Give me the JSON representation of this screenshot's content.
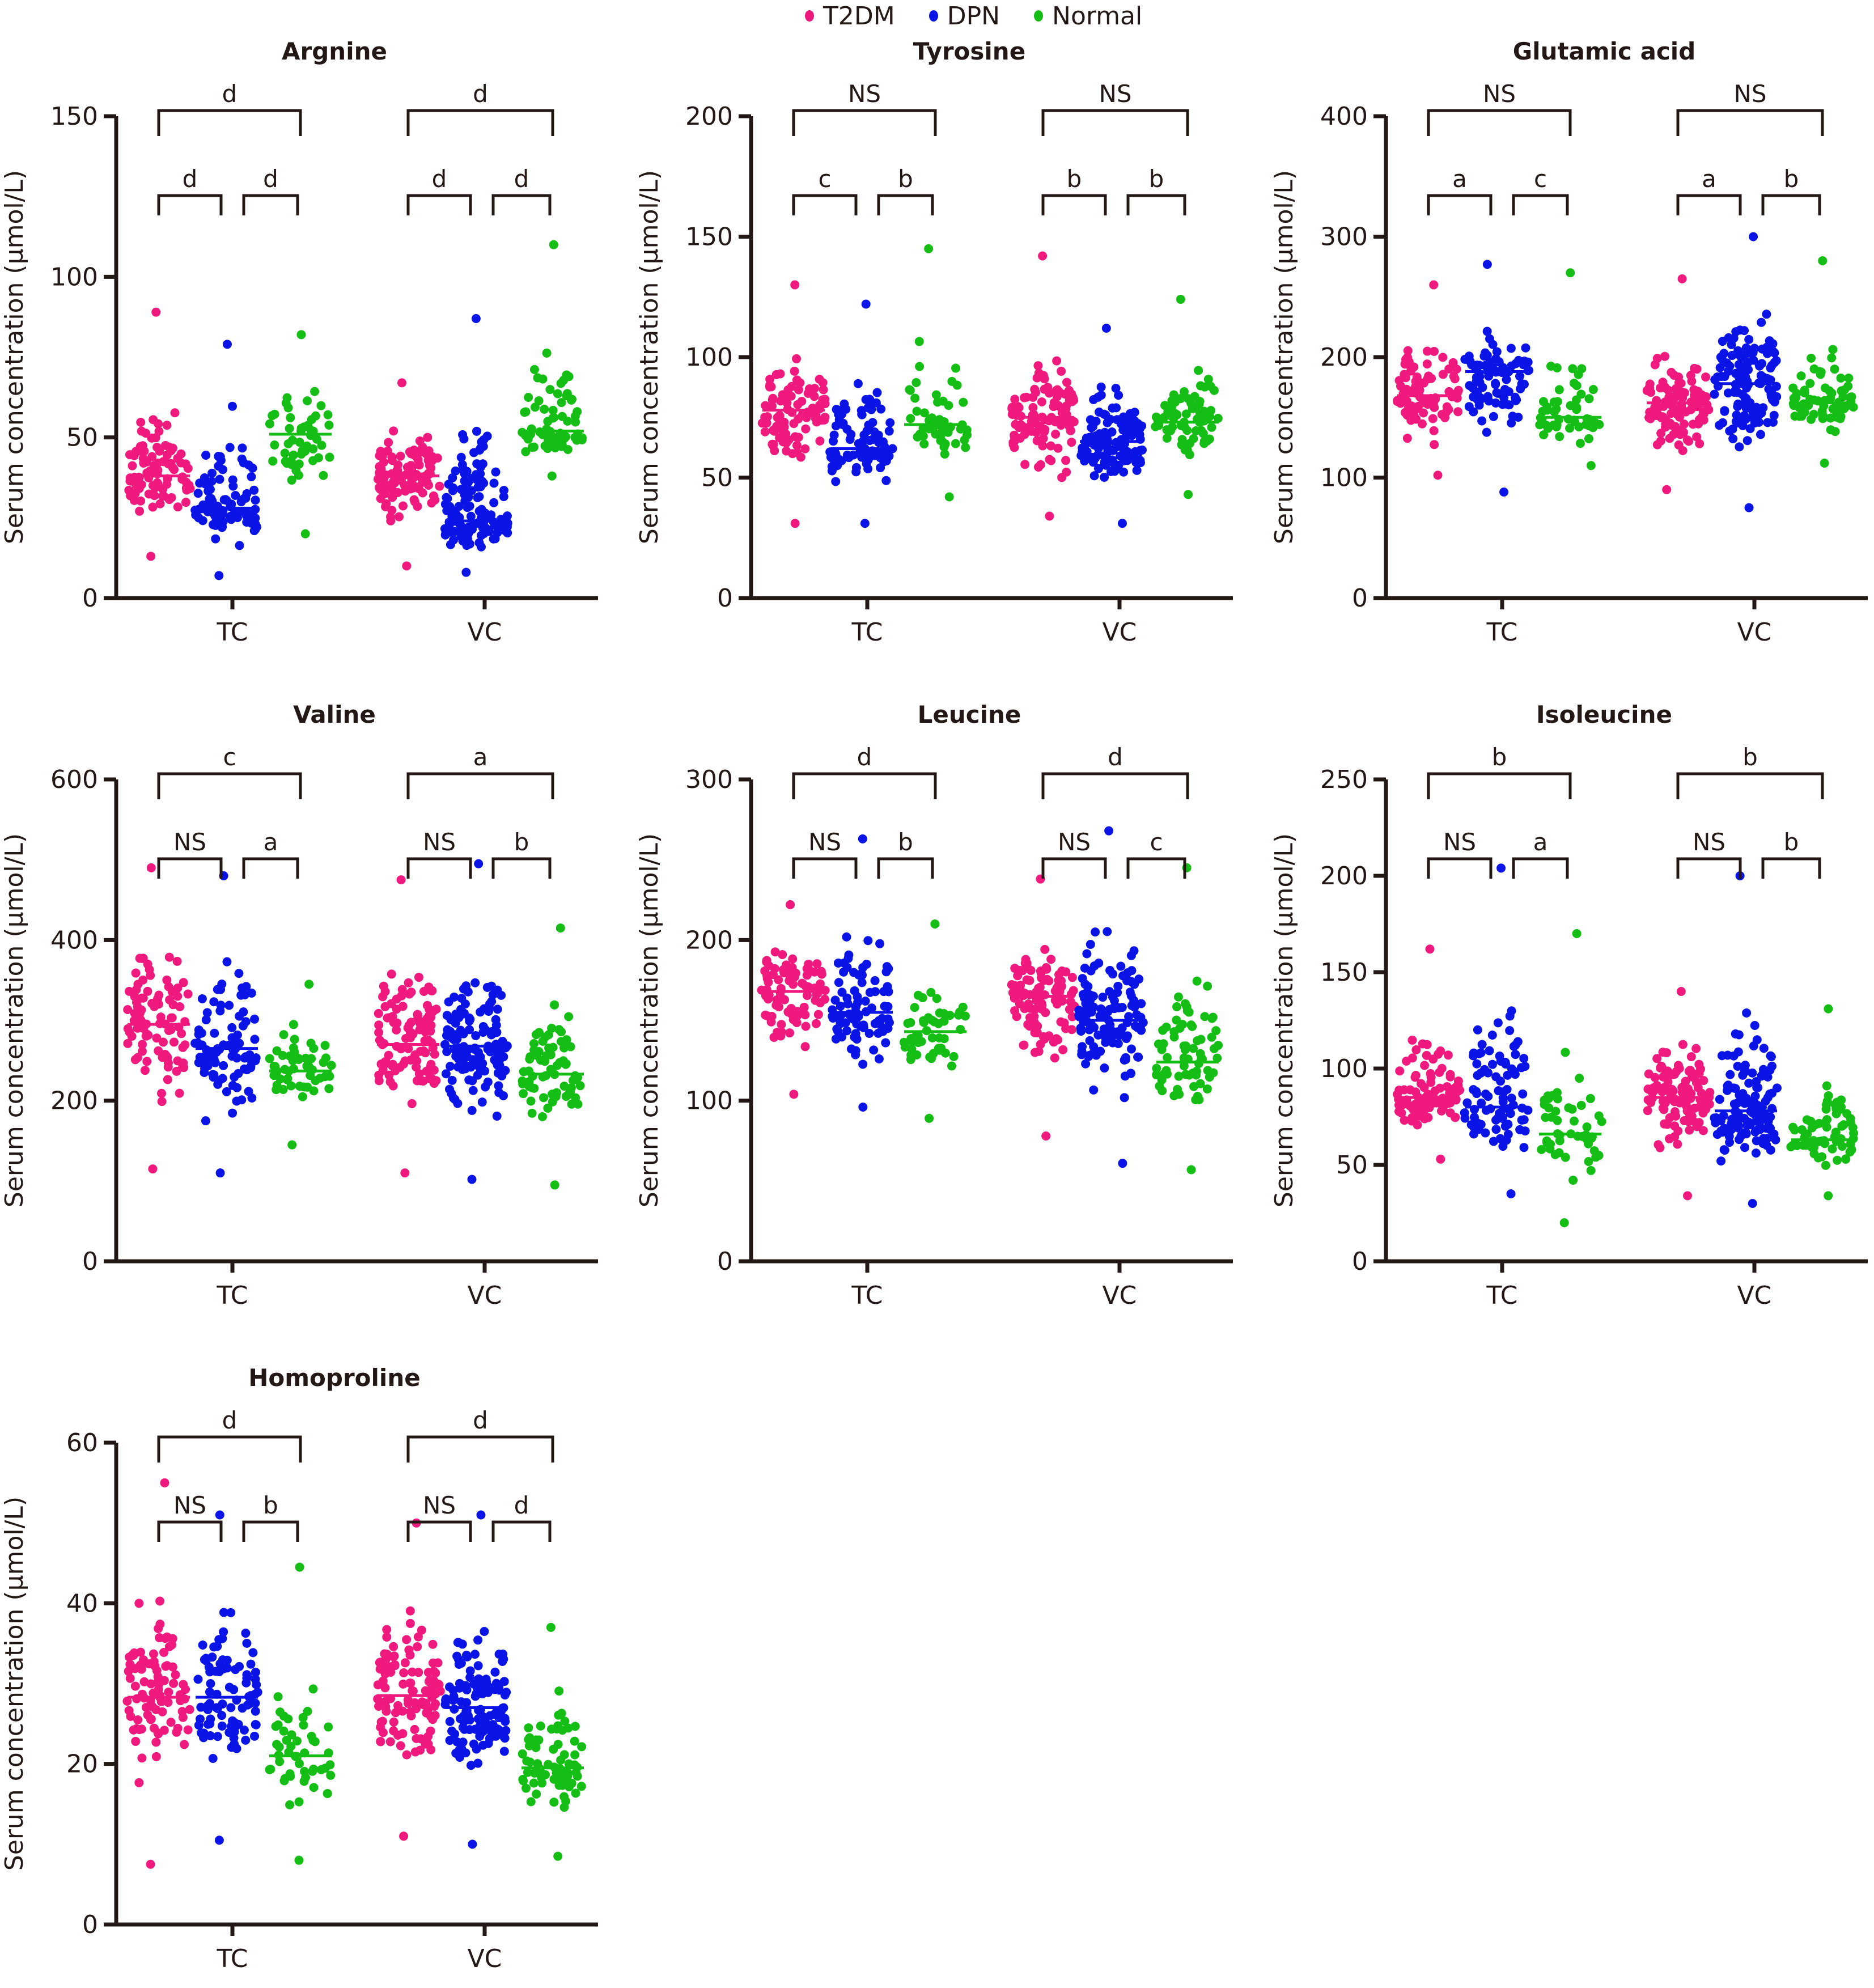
{
  "legend": {
    "items": [
      {
        "label": "T2DM",
        "color": "#f0197d"
      },
      {
        "label": "DPN",
        "color": "#0a14e6"
      },
      {
        "label": "Normal",
        "color": "#14be14"
      }
    ]
  },
  "chart_data": [
    {
      "type": "scatter",
      "title": "Argnine",
      "ylabel": "Serum concentration (μmol/L)",
      "xlabel": "",
      "categories": [
        "TC",
        "VC"
      ],
      "ylim": [
        0,
        150
      ],
      "yticks": [
        0,
        50,
        100,
        150
      ],
      "series": [
        {
          "name": "T2DM",
          "groups": {
            "TC": {
              "median": 38,
              "min": 13,
              "max": 89,
              "n": 90
            },
            "VC": {
              "median": 38,
              "min": 10,
              "max": 67,
              "n": 110
            }
          }
        },
        {
          "name": "DPN",
          "groups": {
            "TC": {
              "median": 28,
              "min": 7,
              "max": 79,
              "n": 90
            },
            "VC": {
              "median": 24,
              "min": 8,
              "max": 87,
              "n": 130
            }
          }
        },
        {
          "name": "Normal",
          "groups": {
            "TC": {
              "median": 51,
              "min": 20,
              "max": 82,
              "n": 50
            },
            "VC": {
              "median": 52,
              "min": 38,
              "max": 110,
              "n": 70
            }
          }
        }
      ],
      "significance": {
        "TC": {
          "T2DM_vs_Normal": "d",
          "T2DM_vs_DPN": "d",
          "DPN_vs_Normal": "d"
        },
        "VC": {
          "T2DM_vs_Normal": "d",
          "T2DM_vs_DPN": "d",
          "DPN_vs_Normal": "d"
        }
      }
    },
    {
      "type": "scatter",
      "title": "Tyrosine",
      "ylabel": "Serum concentration (μmol/L)",
      "xlabel": "",
      "categories": [
        "TC",
        "VC"
      ],
      "ylim": [
        0,
        200
      ],
      "yticks": [
        0,
        50,
        100,
        150,
        200
      ],
      "series": [
        {
          "name": "T2DM",
          "groups": {
            "TC": {
              "median": 78,
              "min": 31,
              "max": 130,
              "n": 90
            },
            "VC": {
              "median": 75,
              "min": 34,
              "max": 142,
              "n": 110
            }
          }
        },
        {
          "name": "DPN",
          "groups": {
            "TC": {
              "median": 62,
              "min": 31,
              "max": 122,
              "n": 90
            },
            "VC": {
              "median": 65,
              "min": 31,
              "max": 112,
              "n": 130
            }
          }
        },
        {
          "name": "Normal",
          "groups": {
            "TC": {
              "median": 72,
              "min": 42,
              "max": 145,
              "n": 50
            },
            "VC": {
              "median": 73,
              "min": 43,
              "max": 124,
              "n": 70
            }
          }
        }
      ],
      "significance": {
        "TC": {
          "T2DM_vs_Normal": "NS",
          "T2DM_vs_DPN": "c",
          "DPN_vs_Normal": "b"
        },
        "VC": {
          "T2DM_vs_Normal": "NS",
          "T2DM_vs_DPN": "b",
          "DPN_vs_Normal": "b"
        }
      }
    },
    {
      "type": "scatter",
      "title": "Glutamic acid",
      "ylabel": "Serum concentration (μmol/L)",
      "xlabel": "",
      "categories": [
        "TC",
        "VC"
      ],
      "ylim": [
        0,
        400
      ],
      "yticks": [
        0,
        100,
        200,
        300,
        400
      ],
      "series": [
        {
          "name": "T2DM",
          "groups": {
            "TC": {
              "median": 168,
              "min": 102,
              "max": 260,
              "n": 90
            },
            "VC": {
              "median": 162,
              "min": 90,
              "max": 265,
              "n": 110
            }
          }
        },
        {
          "name": "DPN",
          "groups": {
            "TC": {
              "median": 188,
              "min": 88,
              "max": 277,
              "n": 90
            },
            "VC": {
              "median": 178,
              "min": 75,
              "max": 300,
              "n": 130
            }
          }
        },
        {
          "name": "Normal",
          "groups": {
            "TC": {
              "median": 150,
              "min": 110,
              "max": 270,
              "n": 50
            },
            "VC": {
              "median": 162,
              "min": 112,
              "max": 280,
              "n": 70
            }
          }
        }
      ],
      "significance": {
        "TC": {
          "T2DM_vs_Normal": "NS",
          "T2DM_vs_DPN": "a",
          "DPN_vs_Normal": "c"
        },
        "VC": {
          "T2DM_vs_Normal": "NS",
          "T2DM_vs_DPN": "a",
          "DPN_vs_Normal": "b"
        }
      }
    },
    {
      "type": "scatter",
      "title": "Valine",
      "ylabel": "Serum concentration (μmol/L)",
      "xlabel": "",
      "categories": [
        "TC",
        "VC"
      ],
      "ylim": [
        0,
        600
      ],
      "yticks": [
        0,
        200,
        400,
        600
      ],
      "series": [
        {
          "name": "T2DM",
          "groups": {
            "TC": {
              "median": 295,
              "min": 115,
              "max": 490,
              "n": 90
            },
            "VC": {
              "median": 270,
              "min": 110,
              "max": 475,
              "n": 110
            }
          }
        },
        {
          "name": "DPN",
          "groups": {
            "TC": {
              "median": 265,
              "min": 110,
              "max": 480,
              "n": 90
            },
            "VC": {
              "median": 268,
              "min": 102,
              "max": 495,
              "n": 130
            }
          }
        },
        {
          "name": "Normal",
          "groups": {
            "TC": {
              "median": 237,
              "min": 145,
              "max": 345,
              "n": 50
            },
            "VC": {
              "median": 233,
              "min": 95,
              "max": 415,
              "n": 70
            }
          }
        }
      ],
      "significance": {
        "TC": {
          "T2DM_vs_Normal": "c",
          "T2DM_vs_DPN": "NS",
          "DPN_vs_Normal": "a"
        },
        "VC": {
          "T2DM_vs_Normal": "a",
          "T2DM_vs_DPN": "NS",
          "DPN_vs_Normal": "b"
        }
      }
    },
    {
      "type": "scatter",
      "title": "Leucine",
      "ylabel": "Serum concentration (μmol/L)",
      "xlabel": "",
      "categories": [
        "TC",
        "VC"
      ],
      "ylim": [
        0,
        300
      ],
      "yticks": [
        0,
        100,
        200,
        300
      ],
      "series": [
        {
          "name": "T2DM",
          "groups": {
            "TC": {
              "median": 168,
              "min": 104,
              "max": 222,
              "n": 90
            },
            "VC": {
              "median": 165,
              "min": 78,
              "max": 238,
              "n": 110
            }
          }
        },
        {
          "name": "DPN",
          "groups": {
            "TC": {
              "median": 155,
              "min": 96,
              "max": 263,
              "n": 90
            },
            "VC": {
              "median": 150,
              "min": 61,
              "max": 268,
              "n": 130
            }
          }
        },
        {
          "name": "Normal",
          "groups": {
            "TC": {
              "median": 143,
              "min": 89,
              "max": 210,
              "n": 50
            },
            "VC": {
              "median": 124,
              "min": 57,
              "max": 245,
              "n": 70
            }
          }
        }
      ],
      "significance": {
        "TC": {
          "T2DM_vs_Normal": "d",
          "T2DM_vs_DPN": "NS",
          "DPN_vs_Normal": "b"
        },
        "VC": {
          "T2DM_vs_Normal": "d",
          "T2DM_vs_DPN": "NS",
          "DPN_vs_Normal": "c"
        }
      }
    },
    {
      "type": "scatter",
      "title": "Isoleucine",
      "ylabel": "Serum concentration (μmol/L)",
      "xlabel": "",
      "categories": [
        "TC",
        "VC"
      ],
      "ylim": [
        0,
        250
      ],
      "yticks": [
        0,
        50,
        100,
        150,
        200,
        250
      ],
      "series": [
        {
          "name": "T2DM",
          "groups": {
            "TC": {
              "median": 85,
              "min": 53,
              "max": 162,
              "n": 90
            },
            "VC": {
              "median": 85,
              "min": 34,
              "max": 140,
              "n": 110
            }
          }
        },
        {
          "name": "DPN",
          "groups": {
            "TC": {
              "median": 80,
              "min": 35,
              "max": 204,
              "n": 90
            },
            "VC": {
              "median": 78,
              "min": 30,
              "max": 200,
              "n": 130
            }
          }
        },
        {
          "name": "Normal",
          "groups": {
            "TC": {
              "median": 66,
              "min": 20,
              "max": 170,
              "n": 50
            },
            "VC": {
              "median": 63,
              "min": 34,
              "max": 131,
              "n": 70
            }
          }
        }
      ],
      "significance": {
        "TC": {
          "T2DM_vs_Normal": "b",
          "T2DM_vs_DPN": "NS",
          "DPN_vs_Normal": "a"
        },
        "VC": {
          "T2DM_vs_Normal": "b",
          "T2DM_vs_DPN": "NS",
          "DPN_vs_Normal": "b"
        }
      }
    },
    {
      "type": "scatter",
      "title": "Homoproline",
      "ylabel": "Serum concentration (μmol/L)",
      "xlabel": "",
      "categories": [
        "TC",
        "VC"
      ],
      "ylim": [
        0,
        60
      ],
      "yticks": [
        0,
        20,
        40,
        60
      ],
      "series": [
        {
          "name": "T2DM",
          "groups": {
            "TC": {
              "median": 28.3,
              "min": 7.5,
              "max": 55,
              "n": 90
            },
            "VC": {
              "median": 28.5,
              "min": 11,
              "max": 50,
              "n": 110
            }
          }
        },
        {
          "name": "DPN",
          "groups": {
            "TC": {
              "median": 28.3,
              "min": 10.5,
              "max": 51,
              "n": 90
            },
            "VC": {
              "median": 27,
              "min": 10,
              "max": 51,
              "n": 130
            }
          }
        },
        {
          "name": "Normal",
          "groups": {
            "TC": {
              "median": 21,
              "min": 8,
              "max": 44.5,
              "n": 50
            },
            "VC": {
              "median": 19.5,
              "min": 8.5,
              "max": 37,
              "n": 70
            }
          }
        }
      ],
      "significance": {
        "TC": {
          "T2DM_vs_Normal": "d",
          "T2DM_vs_DPN": "NS",
          "DPN_vs_Normal": "b"
        },
        "VC": {
          "T2DM_vs_Normal": "d",
          "T2DM_vs_DPN": "NS",
          "DPN_vs_Normal": "d"
        }
      }
    }
  ]
}
